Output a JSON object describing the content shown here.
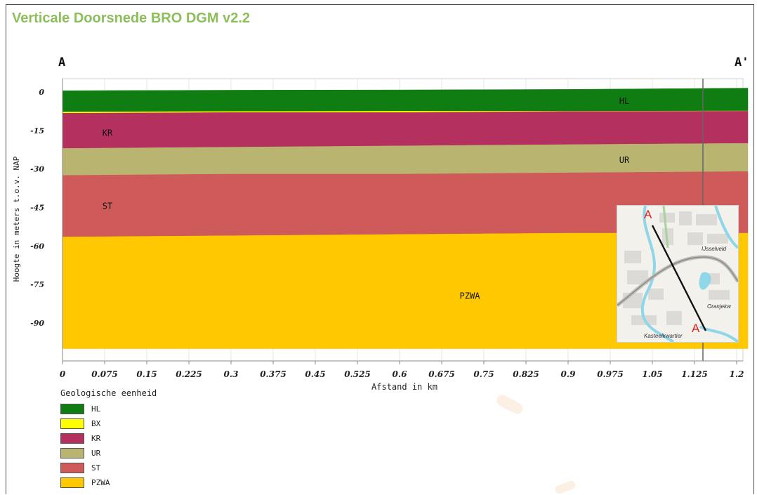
{
  "title": "Verticale Doorsnede BRO DGM v2.2",
  "chart_data": {
    "type": "area",
    "title": "",
    "xlabel": "Afstand in km",
    "ylabel": "Hoogte in meters t.o.v. NAP",
    "xlim": [
      0,
      1.22
    ],
    "ylim": [
      -100,
      4
    ],
    "x_ticks": [
      "0",
      "0.075",
      "0.15",
      "0.225",
      "0.3",
      "0.375",
      "0.45",
      "0.525",
      "0.6",
      "0.675",
      "0.75",
      "0.825",
      "0.9",
      "0.975",
      "1.05",
      "1.125",
      "1.2"
    ],
    "y_ticks": [
      "0",
      "-15",
      "-30",
      "-45",
      "-60",
      "-75",
      "-90"
    ],
    "section_start_label": "A",
    "section_end_label": "A'",
    "x": [
      0,
      0.3,
      0.6,
      0.9,
      1.2
    ],
    "boundaries": {
      "surface": [
        0.5,
        0.7,
        0.8,
        1.0,
        1.5
      ],
      "HL_bottom": [
        -7.8,
        -7.6,
        -7.5,
        -7.5,
        -7.4
      ],
      "BX_bottom": [
        -8.3,
        -8.0,
        -8.0,
        -7.6,
        -7.5
      ],
      "KR_bottom": [
        -22.0,
        -21.5,
        -21.0,
        -20.5,
        -20.0
      ],
      "UR_bottom": [
        -32.5,
        -32.0,
        -32.0,
        -31.5,
        -31.0
      ],
      "ST_bottom": [
        -56.5,
        -56.0,
        -55.5,
        -55.0,
        -55.0
      ],
      "PZWA_bottom": [
        -100,
        -100,
        -100,
        -100,
        -100
      ]
    },
    "units": [
      {
        "name": "HL",
        "color": "#0f7d12"
      },
      {
        "name": "BX",
        "color": "#ffff00"
      },
      {
        "name": "KR",
        "color": "#b3305f"
      },
      {
        "name": "UR",
        "color": "#b9b46f"
      },
      {
        "name": "ST",
        "color": "#cf5a5a"
      },
      {
        "name": "PZWA",
        "color": "#ffc800"
      }
    ],
    "layer_labels": [
      {
        "text": "HL",
        "x": 1.0,
        "y": -3.5
      },
      {
        "text": "KR",
        "x": 0.08,
        "y": -16
      },
      {
        "text": "UR",
        "x": 1.0,
        "y": -26.5
      },
      {
        "text": "ST",
        "x": 0.08,
        "y": -44.5
      },
      {
        "text": "PZWA",
        "x": 0.725,
        "y": -79.5
      }
    ],
    "marker_x": 1.14,
    "legend_title": "Geologische eenheid",
    "legend": [
      "HL",
      "BX",
      "KR",
      "UR",
      "ST",
      "PZWA"
    ]
  },
  "inset_map": {
    "start_label": "A",
    "end_label": "A",
    "place_labels": [
      "IJsselveld",
      "Oranjekw",
      "Kasteelkwartier"
    ]
  }
}
